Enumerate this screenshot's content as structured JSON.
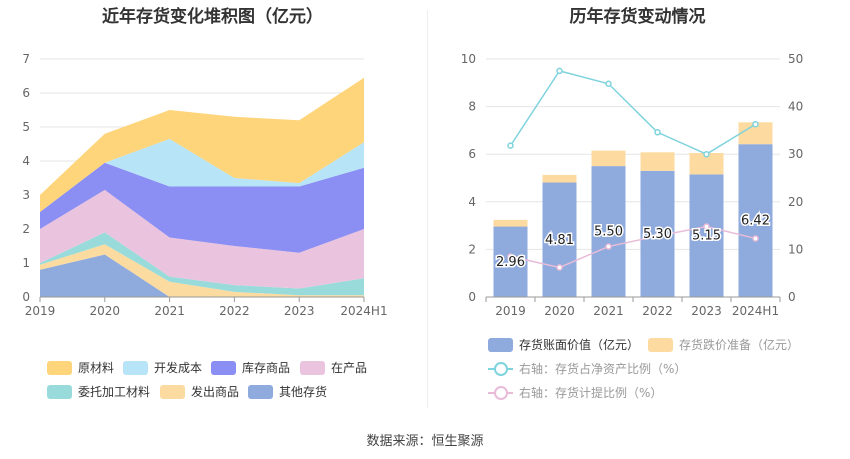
{
  "left": {
    "title": "近年存货变化堆积图（亿元）",
    "legend": [
      "原材料",
      "开发成本",
      "库存商品",
      "在产品",
      "委托加工材料",
      "发出商品",
      "其他存货"
    ]
  },
  "right": {
    "title": "历年存货变动情况",
    "legend": [
      "存货账面价值（亿元）",
      "存货跌价准备（亿元）",
      "右轴：存货占净资产比例（%）",
      "右轴：存货计提比例（%）"
    ]
  },
  "source": "数据来源：恒生聚源",
  "chart_data": [
    {
      "type": "area",
      "stacked": true,
      "title": "近年存货变化堆积图（亿元）",
      "categories": [
        "2019",
        "2020",
        "2021",
        "2022",
        "2023",
        "2024H1"
      ],
      "ylim": [
        0,
        7
      ],
      "yticks": [
        0,
        1,
        2,
        3,
        4,
        5,
        6,
        7
      ],
      "grid": true,
      "legend_position": "bottom",
      "series": [
        {
          "name": "其他存货",
          "color": "#8faadc",
          "values": [
            0.8,
            1.25,
            0.0,
            0.0,
            0.0,
            0.0
          ]
        },
        {
          "name": "发出商品",
          "color": "#fbdba0",
          "values": [
            0.15,
            0.3,
            0.45,
            0.15,
            0.05,
            0.05
          ]
        },
        {
          "name": "委托加工材料",
          "color": "#99dbdb",
          "values": [
            0.05,
            0.35,
            0.15,
            0.2,
            0.2,
            0.5
          ]
        },
        {
          "name": "在产品",
          "color": "#eac4de",
          "values": [
            1.0,
            1.25,
            1.15,
            1.15,
            1.05,
            1.45
          ]
        },
        {
          "name": "库存商品",
          "color": "#8b8ef3",
          "values": [
            0.5,
            0.8,
            1.5,
            1.75,
            1.95,
            1.8
          ]
        },
        {
          "name": "开发成本",
          "color": "#b8e4f7",
          "values": [
            0.0,
            0.0,
            1.4,
            0.25,
            0.1,
            0.75
          ]
        },
        {
          "name": "原材料",
          "color": "#fed57a",
          "values": [
            0.5,
            0.85,
            0.85,
            1.8,
            1.85,
            1.9
          ]
        }
      ]
    },
    {
      "type": "bar",
      "stacked": true,
      "title": "历年存货变动情况",
      "categories": [
        "2019",
        "2020",
        "2021",
        "2022",
        "2023",
        "2024H1"
      ],
      "ylim": [
        0,
        10
      ],
      "yticks": [
        0,
        2,
        4,
        6,
        8,
        10
      ],
      "y2lim": [
        0,
        50
      ],
      "y2ticks": [
        0,
        10,
        20,
        30,
        40,
        50
      ],
      "legend_position": "bottom",
      "series": [
        {
          "name": "存货账面价值（亿元）",
          "color": "#8faadc",
          "values": [
            2.96,
            4.81,
            5.5,
            5.3,
            5.15,
            6.42
          ],
          "labels": [
            "2.96",
            "4.81",
            "5.50",
            "5.30",
            "5.15",
            "6.42"
          ]
        },
        {
          "name": "存货跌价准备（亿元）",
          "color": "#fddba0",
          "values": [
            0.28,
            0.32,
            0.65,
            0.78,
            0.9,
            0.92
          ]
        },
        {
          "name": "右轴：存货占净资产比例（%）",
          "type": "line",
          "axis": "right",
          "color": "#7fd3dd",
          "values": [
            31.8,
            47.5,
            44.8,
            34.6,
            30.0,
            36.3
          ]
        },
        {
          "name": "右轴：存货计提比例（%）",
          "type": "line",
          "axis": "right",
          "color": "#e8bcd8",
          "values": [
            8.5,
            6.2,
            10.6,
            12.8,
            14.8,
            12.3
          ]
        }
      ]
    }
  ]
}
